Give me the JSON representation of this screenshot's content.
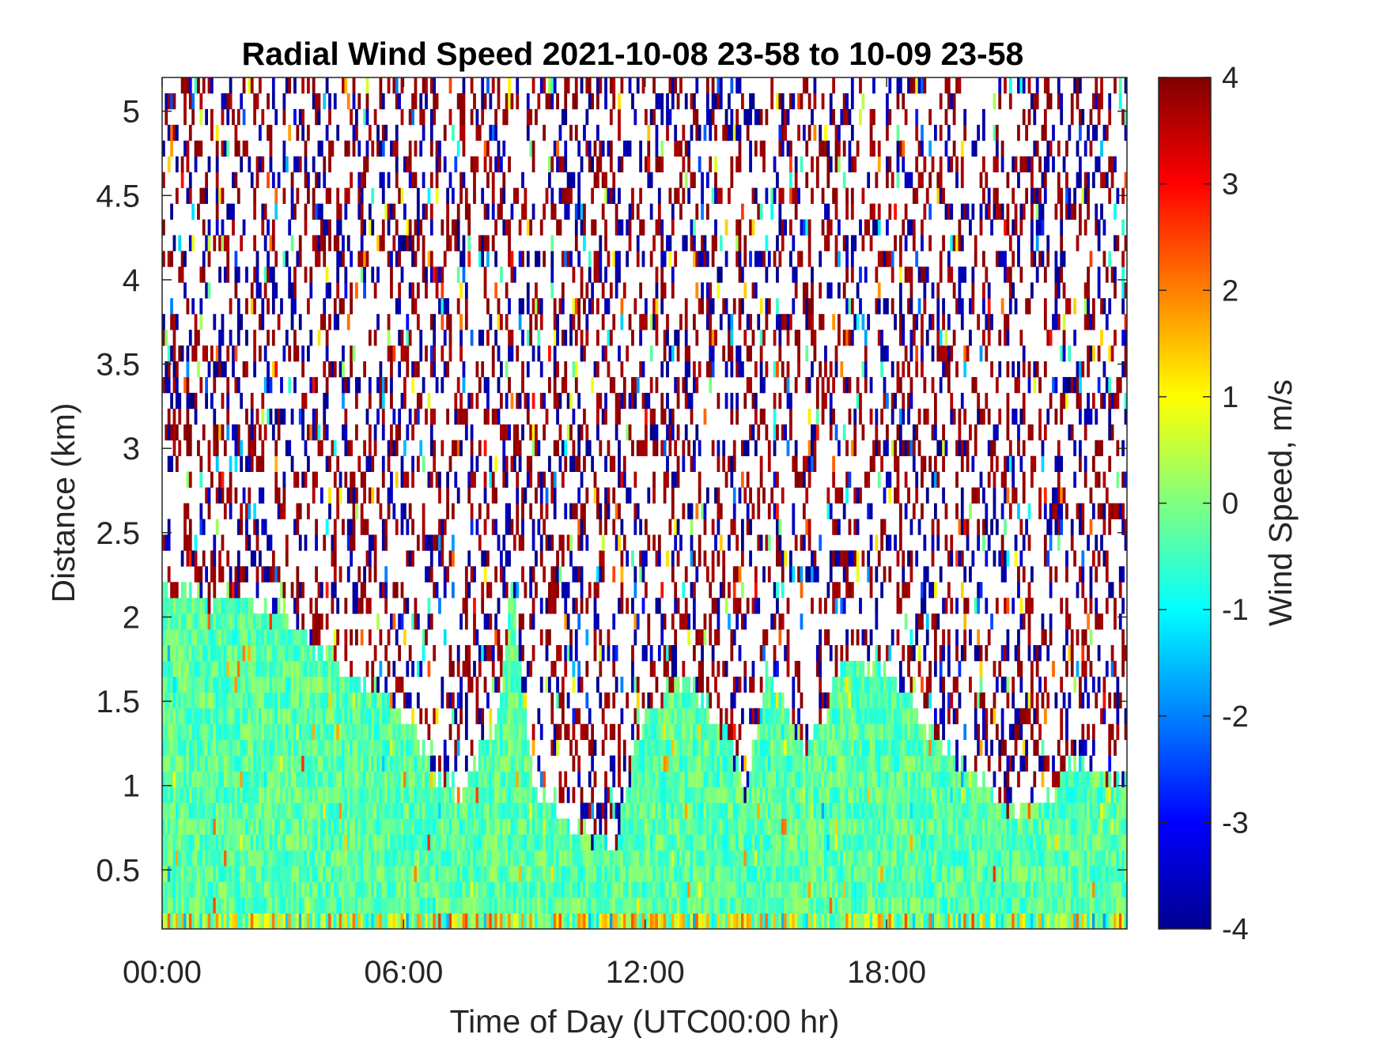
{
  "chart_data": {
    "type": "heatmap",
    "title": "Radial Wind Speed 2021-10-08 23-58 to 10-09 23-58",
    "xlabel": "Time of Day (UTC00:00 hr)",
    "ylabel": "Distance (km)",
    "colorbar_label": "Wind Speed, m/s",
    "colormap": "jet",
    "x_unit": "hours",
    "xlim": [
      0,
      23.97
    ],
    "ylim": [
      0.15,
      5.2
    ],
    "clim": [
      -4,
      4
    ],
    "x_ticks": [
      {
        "value": 0,
        "label": "00:00"
      },
      {
        "value": 6,
        "label": "06:00"
      },
      {
        "value": 12,
        "label": "12:00"
      },
      {
        "value": 18,
        "label": "18:00"
      }
    ],
    "y_ticks": [
      {
        "value": 0.5,
        "label": "0.5"
      },
      {
        "value": 1,
        "label": "1"
      },
      {
        "value": 1.5,
        "label": "1.5"
      },
      {
        "value": 2,
        "label": "2"
      },
      {
        "value": 2.5,
        "label": "2.5"
      },
      {
        "value": 3,
        "label": "3"
      },
      {
        "value": 3.5,
        "label": "3.5"
      },
      {
        "value": 4,
        "label": "4"
      },
      {
        "value": 4.5,
        "label": "4.5"
      },
      {
        "value": 5,
        "label": "5"
      }
    ],
    "colorbar_ticks": [
      {
        "value": 4,
        "label": "4"
      },
      {
        "value": 3,
        "label": "3"
      },
      {
        "value": 2,
        "label": "2"
      },
      {
        "value": 1,
        "label": "1"
      },
      {
        "value": 0,
        "label": "0"
      },
      {
        "value": -1,
        "label": "-1"
      },
      {
        "value": -2,
        "label": "-2"
      },
      {
        "value": -3,
        "label": "-3"
      },
      {
        "value": -4,
        "label": "-4"
      }
    ],
    "signal_top_km": [
      {
        "x": 0,
        "y": 2.15
      },
      {
        "x": 2,
        "y": 2.1
      },
      {
        "x": 3,
        "y": 2.05
      },
      {
        "x": 3.2,
        "y": 1.95
      },
      {
        "x": 4.2,
        "y": 1.75
      },
      {
        "x": 5,
        "y": 1.6
      },
      {
        "x": 6,
        "y": 1.45
      },
      {
        "x": 6.8,
        "y": 1.05
      },
      {
        "x": 7.5,
        "y": 0.95
      },
      {
        "x": 8.3,
        "y": 1.4
      },
      {
        "x": 8.7,
        "y": 2.2
      },
      {
        "x": 9.2,
        "y": 1.0
      },
      {
        "x": 9.8,
        "y": 0.85
      },
      {
        "x": 10.5,
        "y": 0.75
      },
      {
        "x": 11.2,
        "y": 0.6
      },
      {
        "x": 12,
        "y": 1.45
      },
      {
        "x": 13,
        "y": 1.65
      },
      {
        "x": 14,
        "y": 1.3
      },
      {
        "x": 14.5,
        "y": 0.95
      },
      {
        "x": 15,
        "y": 1.7
      },
      {
        "x": 16,
        "y": 1.2
      },
      {
        "x": 17,
        "y": 1.75
      },
      {
        "x": 18,
        "y": 1.7
      },
      {
        "x": 19,
        "y": 1.35
      },
      {
        "x": 20,
        "y": 1.1
      },
      {
        "x": 21,
        "y": 0.85
      },
      {
        "x": 22,
        "y": 0.9
      },
      {
        "x": 22.5,
        "y": 1.15
      },
      {
        "x": 23.5,
        "y": 1.05
      },
      {
        "x": 23.97,
        "y": 1.0
      }
    ],
    "typical_signal_speed_ms": -0.3,
    "noise_values_ms": [
      -4,
      4
    ],
    "grid": false
  }
}
